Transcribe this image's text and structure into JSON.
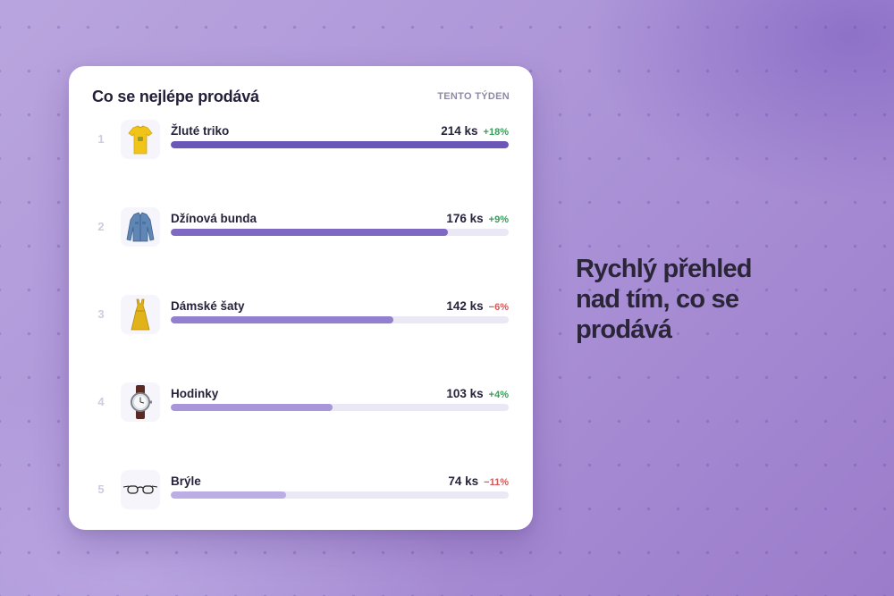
{
  "card": {
    "title": "Co se nejlépe prodává",
    "period": "TENTO TÝDEN",
    "items": [
      {
        "rank": "1",
        "name": "Žluté triko",
        "quantity": "214 ks",
        "change": "+18%",
        "trend": "up",
        "share": 1.0,
        "bar_color": "#6b57b8",
        "icon": "yellow-tshirt-icon"
      },
      {
        "rank": "2",
        "name": "Džínová bunda",
        "quantity": "176 ks",
        "change": "+9%",
        "trend": "up",
        "share": 0.82,
        "bar_color": "#7f68c4",
        "icon": "denim-jacket-icon"
      },
      {
        "rank": "3",
        "name": "Dámské šaty",
        "quantity": "142 ks",
        "change": "−6%",
        "trend": "down",
        "share": 0.66,
        "bar_color": "#937fcf",
        "icon": "dress-icon"
      },
      {
        "rank": "4",
        "name": "Hodinky",
        "quantity": "103 ks",
        "change": "+4%",
        "trend": "up",
        "share": 0.48,
        "bar_color": "#a896da",
        "icon": "watch-icon"
      },
      {
        "rank": "5",
        "name": "Brýle",
        "quantity": "74 ks",
        "change": "−11%",
        "trend": "down",
        "share": 0.34,
        "bar_color": "#bcaee5",
        "icon": "glasses-icon"
      }
    ]
  },
  "headline": "Rychlý přehled nad tím, co se prodává",
  "colors": {
    "up": "#3a9b5c",
    "down": "#d25a5a",
    "track": "#ebe8f6"
  }
}
